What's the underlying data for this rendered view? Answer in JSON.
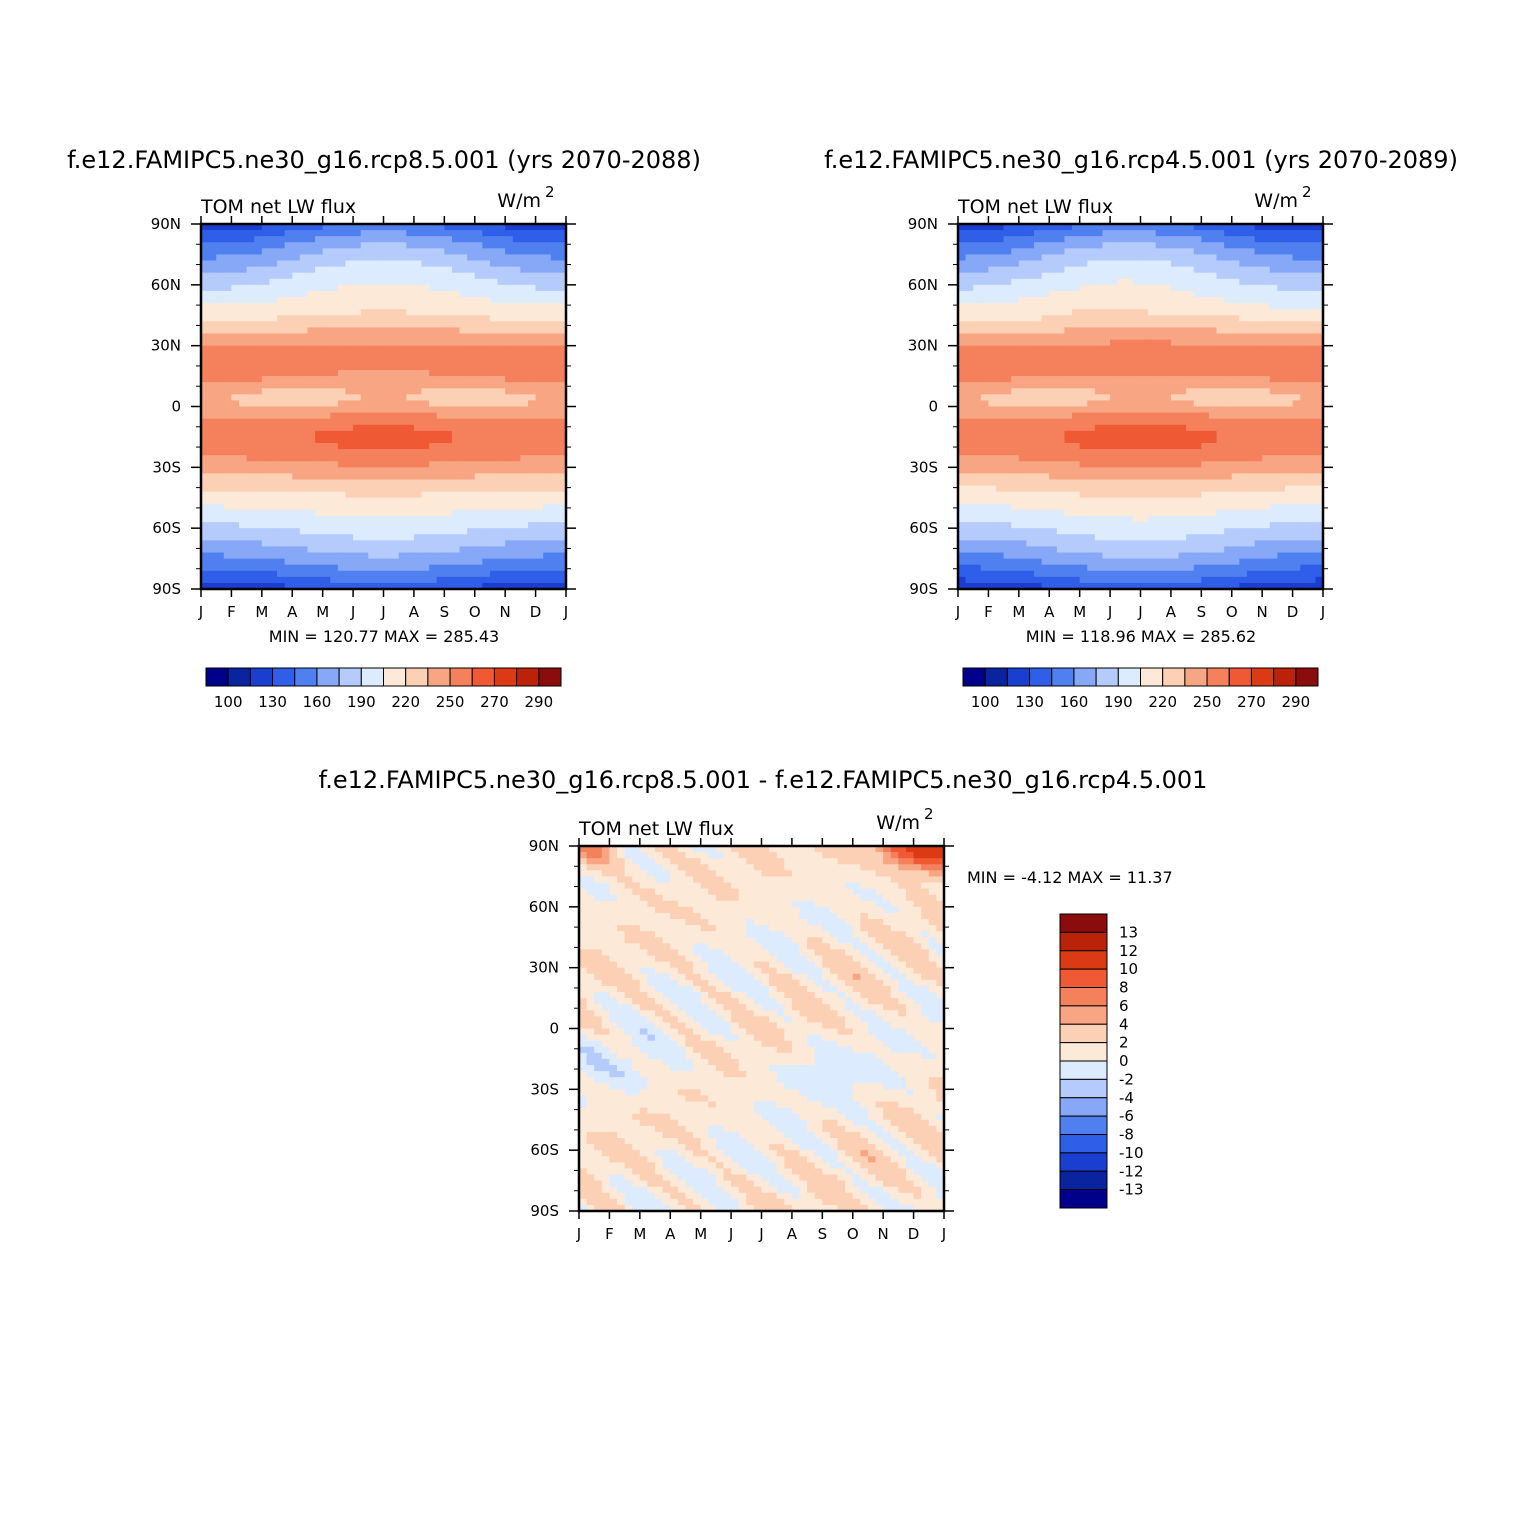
{
  "panels": [
    {
      "id": "rcp85",
      "title": "f.e12.FAMIPC5.ne30_g16.rcp8.5.001 (yrs 2070-2088)",
      "left_label": "TOM net LW flux",
      "units": "W/m",
      "units_sup": "2",
      "stats": "MIN = 120.77 MAX = 285.43"
    },
    {
      "id": "rcp45",
      "title": "f.e12.FAMIPC5.ne30_g16.rcp4.5.001 (yrs 2070-2089)",
      "left_label": "TOM net LW flux",
      "units": "W/m",
      "units_sup": "2",
      "stats": "MIN = 118.96 MAX = 285.62"
    },
    {
      "id": "diff",
      "title": "f.e12.FAMIPC5.ne30_g16.rcp8.5.001 - f.e12.FAMIPC5.ne30_g16.rcp4.5.001",
      "left_label": "TOM net LW flux",
      "units": "W/m",
      "units_sup": "2",
      "stats": "MIN = -4.12 MAX = 11.37"
    }
  ],
  "chart_data": [
    {
      "type": "heatmap",
      "title": "f.e12.FAMIPC5.ne30_g16.rcp8.5.001 (yrs 2070-2088)",
      "variable": "TOM net LW flux",
      "units": "W/m2",
      "x_ticks": [
        "J",
        "F",
        "M",
        "A",
        "M",
        "J",
        "J",
        "A",
        "S",
        "O",
        "N",
        "D",
        "J"
      ],
      "y_ticks": [
        "90N",
        "60N",
        "30N",
        "0",
        "30S",
        "60S",
        "90S"
      ],
      "ylim": [
        -90,
        90
      ],
      "min": 120.77,
      "max": 285.43,
      "colorbar_labels": [
        "100",
        "130",
        "160",
        "190",
        "220",
        "250",
        "270",
        "290"
      ],
      "colorbar_colors": [
        "#00008b",
        "#0a239e",
        "#1a3fd0",
        "#2f5fe8",
        "#5080f0",
        "#86a8f7",
        "#b5cbfc",
        "#dcebfd",
        "#fde9d8",
        "#fcd0b4",
        "#f8a584",
        "#f4805c",
        "#ef5a34",
        "#dc3a14",
        "#bb220a",
        "#8b0c0c"
      ],
      "colorbar_extent": [
        85,
        305
      ]
    },
    {
      "type": "heatmap",
      "title": "f.e12.FAMIPC5.ne30_g16.rcp4.5.001 (yrs 2070-2089)",
      "variable": "TOM net LW flux",
      "units": "W/m2",
      "x_ticks": [
        "J",
        "F",
        "M",
        "A",
        "M",
        "J",
        "J",
        "A",
        "S",
        "O",
        "N",
        "D",
        "J"
      ],
      "y_ticks": [
        "90N",
        "60N",
        "30N",
        "0",
        "30S",
        "60S",
        "90S"
      ],
      "ylim": [
        -90,
        90
      ],
      "min": 118.96,
      "max": 285.62,
      "colorbar_labels": [
        "100",
        "130",
        "160",
        "190",
        "220",
        "250",
        "270",
        "290"
      ],
      "colorbar_colors": [
        "#00008b",
        "#0a239e",
        "#1a3fd0",
        "#2f5fe8",
        "#5080f0",
        "#86a8f7",
        "#b5cbfc",
        "#dcebfd",
        "#fde9d8",
        "#fcd0b4",
        "#f8a584",
        "#f4805c",
        "#ef5a34",
        "#dc3a14",
        "#bb220a",
        "#8b0c0c"
      ],
      "colorbar_extent": [
        85,
        305
      ]
    },
    {
      "type": "heatmap",
      "title": "f.e12.FAMIPC5.ne30_g16.rcp8.5.001 - f.e12.FAMIPC5.ne30_g16.rcp4.5.001",
      "variable": "TOM net LW flux",
      "units": "W/m2",
      "x_ticks": [
        "J",
        "F",
        "M",
        "A",
        "M",
        "J",
        "J",
        "A",
        "S",
        "O",
        "N",
        "D",
        "J"
      ],
      "y_ticks": [
        "90N",
        "60N",
        "30N",
        "0",
        "30S",
        "60S",
        "90S"
      ],
      "ylim": [
        -90,
        90
      ],
      "min": -4.12,
      "max": 11.37,
      "colorbar_labels": [
        "13",
        "12",
        "10",
        "8",
        "6",
        "4",
        "2",
        "0",
        "-2",
        "-4",
        "-6",
        "-8",
        "-10",
        "-12",
        "-13"
      ],
      "colorbar_colors": [
        "#8b0c0c",
        "#bb220a",
        "#dc3a14",
        "#ef5a34",
        "#f4805c",
        "#f8a584",
        "#fcd0b4",
        "#fde9d8",
        "#dcebfd",
        "#b5cbfc",
        "#86a8f7",
        "#5080f0",
        "#2f5fe8",
        "#1a3fd0",
        "#0a239e",
        "#00008b"
      ],
      "colorbar_extent": [
        -15,
        15
      ]
    }
  ]
}
